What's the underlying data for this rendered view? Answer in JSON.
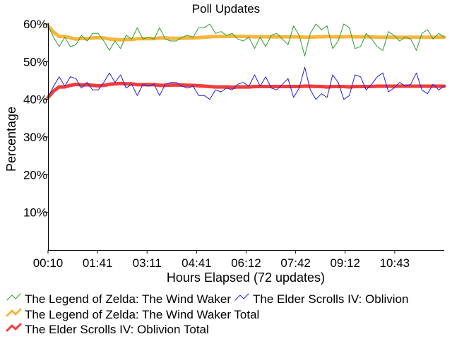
{
  "chart_data": {
    "type": "line",
    "title": "Poll Updates",
    "xlabel": "Hours Elapsed (72 updates)",
    "ylabel": "Percentage",
    "ylim": [
      0,
      60
    ],
    "yticks": [
      10,
      20,
      30,
      40,
      50,
      60
    ],
    "ytick_labels": [
      "10%",
      "20%",
      "30%",
      "40%",
      "50%",
      "60%"
    ],
    "xlim": [
      0,
      72
    ],
    "xtick_positions": [
      0,
      9,
      18,
      27,
      36,
      45,
      54,
      63
    ],
    "xtick_labels": [
      "00:10",
      "01:41",
      "03:11",
      "04:41",
      "06:12",
      "07:42",
      "09:12",
      "10:43"
    ],
    "grid": false,
    "legend_position": "bottom",
    "series": [
      {
        "name": "The Legend of Zelda: The Wind Waker",
        "color": "#2e9a2e",
        "width": 1,
        "values": [
          59.5,
          56.5,
          54,
          56.5,
          54,
          54.5,
          57,
          55.5,
          57.5,
          57.5,
          55.5,
          53,
          55.5,
          53.5,
          57,
          56,
          59,
          56,
          56.5,
          56,
          59,
          56,
          55.5,
          55.5,
          56.5,
          57,
          56.5,
          59,
          59,
          60,
          57.5,
          58,
          57,
          57.5,
          56,
          55.5,
          56.5,
          53.5,
          56.5,
          54,
          57,
          57.5,
          56,
          54.5,
          59.5,
          57,
          51.5,
          57.5,
          60,
          58.5,
          59.5,
          53.5,
          55.5,
          60,
          59,
          53.5,
          54,
          57.5,
          56,
          54,
          53,
          58,
          57,
          55.5,
          56.5,
          56,
          53,
          57.5,
          58.5,
          56,
          57.5,
          56.5
        ]
      },
      {
        "name": "The Elder Scrolls IV: Oblivion",
        "color": "#1f1fdc",
        "width": 1,
        "values": [
          40.5,
          43.5,
          46,
          43.5,
          46,
          45.5,
          43,
          44.5,
          42.5,
          42.5,
          44.5,
          47,
          44.5,
          46.5,
          43,
          44,
          41,
          44,
          43.5,
          44,
          41,
          44,
          44.5,
          44.5,
          43.5,
          43,
          43.5,
          41,
          41,
          40,
          42.5,
          42,
          43,
          42.5,
          44,
          44.5,
          43.5,
          46.5,
          43.5,
          46,
          43,
          42.5,
          44,
          45.5,
          40.5,
          43,
          48.5,
          42.5,
          40,
          41.5,
          40.5,
          46.5,
          44.5,
          40,
          41,
          46.5,
          46,
          42.5,
          44,
          46,
          47,
          42,
          43,
          44.5,
          43.5,
          44,
          47,
          42.5,
          41.5,
          44,
          42.5,
          43.5
        ]
      },
      {
        "name": "The Legend of Zelda: The Wind Waker Total",
        "color": "#f5b63c",
        "width": 5,
        "values": [
          59.5,
          57.8,
          56.7,
          56.7,
          56.3,
          56.0,
          56.2,
          56.1,
          56.3,
          56.4,
          56.3,
          56.0,
          55.9,
          55.8,
          55.9,
          55.9,
          56.1,
          56.1,
          56.1,
          56.1,
          56.3,
          56.3,
          56.2,
          56.2,
          56.2,
          56.3,
          56.3,
          56.4,
          56.5,
          56.6,
          56.7,
          56.7,
          56.7,
          56.8,
          56.7,
          56.7,
          56.7,
          56.6,
          56.6,
          56.6,
          56.6,
          56.6,
          56.6,
          56.6,
          56.6,
          56.6,
          56.5,
          56.5,
          56.6,
          56.6,
          56.7,
          56.6,
          56.6,
          56.6,
          56.7,
          56.6,
          56.6,
          56.6,
          56.6,
          56.5,
          56.5,
          56.5,
          56.5,
          56.5,
          56.5,
          56.5,
          56.5,
          56.5,
          56.5,
          56.5,
          56.5,
          56.5
        ]
      },
      {
        "name": "The Elder Scrolls IV: Oblivion Total",
        "color": "#f23c3c",
        "width": 5,
        "values": [
          40.5,
          42.2,
          43.3,
          43.3,
          43.7,
          44.0,
          43.8,
          43.9,
          43.7,
          43.6,
          43.7,
          44.0,
          44.1,
          44.2,
          44.1,
          44.1,
          43.9,
          43.9,
          43.9,
          43.9,
          43.7,
          43.7,
          43.8,
          43.8,
          43.8,
          43.7,
          43.7,
          43.6,
          43.5,
          43.4,
          43.3,
          43.3,
          43.3,
          43.2,
          43.3,
          43.3,
          43.3,
          43.4,
          43.4,
          43.4,
          43.4,
          43.4,
          43.4,
          43.4,
          43.4,
          43.4,
          43.5,
          43.5,
          43.4,
          43.4,
          43.3,
          43.4,
          43.4,
          43.4,
          43.3,
          43.4,
          43.4,
          43.4,
          43.4,
          43.5,
          43.5,
          43.5,
          43.5,
          43.5,
          43.5,
          43.5,
          43.5,
          43.5,
          43.5,
          43.5,
          43.5,
          43.5
        ]
      }
    ]
  }
}
